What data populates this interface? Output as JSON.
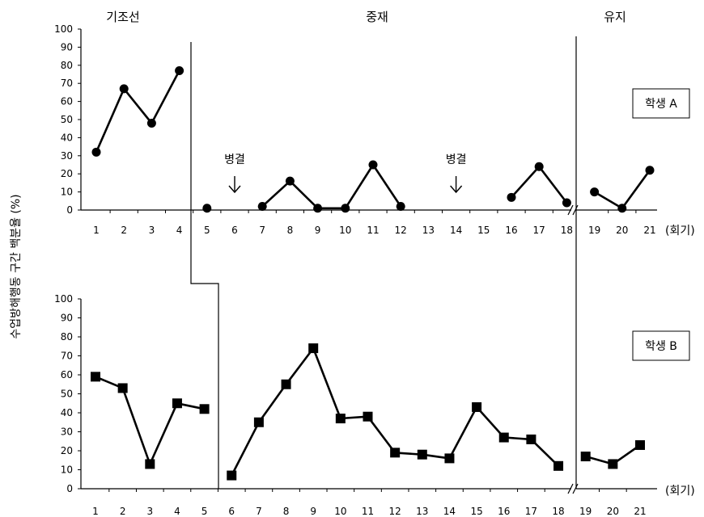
{
  "phases": [
    "기조선",
    "중재",
    "유지"
  ],
  "ylabel": "수업방해행동 구간 백분율 (%)",
  "xunit": "(회기)",
  "y_ticks": [
    "0",
    "10",
    "20",
    "30",
    "40",
    "50",
    "60",
    "70",
    "80",
    "90",
    "100"
  ],
  "sessions": [
    "1",
    "2",
    "3",
    "4",
    "5",
    "6",
    "7",
    "8",
    "9",
    "10",
    "11",
    "12",
    "13",
    "14",
    "15",
    "16",
    "17",
    "18",
    "19",
    "20",
    "21"
  ],
  "chart_data": [
    {
      "type": "line",
      "label": "학생 A",
      "marker": "circle",
      "ylim": [
        0,
        100
      ],
      "x": [
        1,
        2,
        3,
        4,
        5,
        6,
        7,
        8,
        9,
        10,
        11,
        12,
        13,
        14,
        15,
        16,
        17,
        18,
        19,
        20,
        21
      ],
      "segments": [
        {
          "x": [
            1,
            2,
            3,
            4
          ],
          "y": [
            32,
            67,
            48,
            77
          ]
        },
        {
          "x": [
            5
          ],
          "y": [
            1
          ]
        },
        {
          "x": [
            7,
            8,
            9,
            10,
            11,
            12
          ],
          "y": [
            2,
            16,
            1,
            1,
            25,
            2
          ]
        },
        {
          "x": [
            16,
            17,
            18
          ],
          "y": [
            7,
            24,
            4
          ]
        },
        {
          "x": [
            19,
            20,
            21
          ],
          "y": [
            10,
            1,
            22
          ]
        }
      ],
      "annotations": [
        {
          "text": "병결",
          "session": 6
        },
        {
          "text": "병결",
          "session": 14
        }
      ]
    },
    {
      "type": "line",
      "label": "학생 B",
      "marker": "square",
      "ylim": [
        0,
        100
      ],
      "x": [
        1,
        2,
        3,
        4,
        5,
        6,
        7,
        8,
        9,
        10,
        11,
        12,
        13,
        14,
        15,
        16,
        17,
        18,
        19,
        20,
        21
      ],
      "segments": [
        {
          "x": [
            1,
            2,
            3,
            4,
            5
          ],
          "y": [
            59,
            53,
            13,
            45,
            42
          ]
        },
        {
          "x": [
            6,
            7,
            8,
            9,
            10,
            11,
            12,
            13,
            14,
            15,
            16,
            17,
            18
          ],
          "y": [
            7,
            35,
            55,
            74,
            37,
            38,
            19,
            18,
            16,
            43,
            27,
            26,
            12
          ]
        },
        {
          "x": [
            19,
            20,
            21
          ],
          "y": [
            17,
            13,
            23
          ]
        }
      ]
    }
  ]
}
